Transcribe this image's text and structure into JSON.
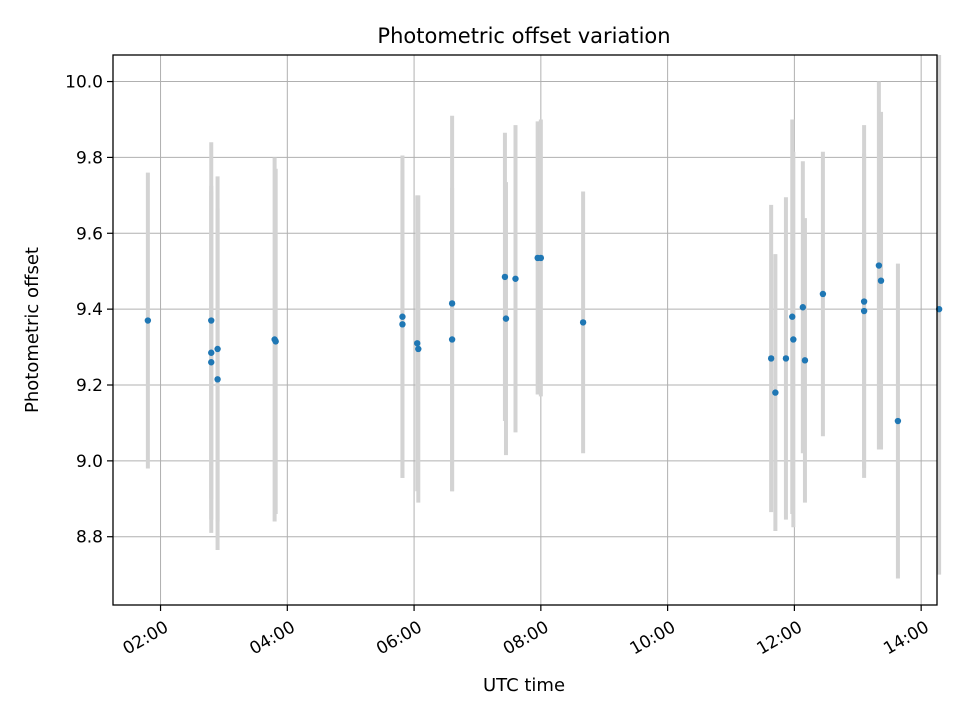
{
  "chart_data": {
    "type": "scatter",
    "title": "Photometric offset variation",
    "xlabel": "UTC time",
    "ylabel": "Photometric offset",
    "x_is_time": true,
    "xlim": [
      "01:15",
      "14:15"
    ],
    "ylim": [
      8.62,
      10.07
    ],
    "xticks": [
      "02:00",
      "04:00",
      "06:00",
      "08:00",
      "10:00",
      "12:00",
      "14:00"
    ],
    "yticks": [
      8.8,
      9.0,
      9.2,
      9.4,
      9.6,
      9.8,
      10.0
    ],
    "grid": true,
    "point_color": "#1f77b4",
    "errorbar_color": "#d3d3d3",
    "points": [
      {
        "x": "01:48",
        "y": 9.37,
        "err": 0.39
      },
      {
        "x": "02:48",
        "y": 9.37,
        "err": 0.47
      },
      {
        "x": "02:48",
        "y": 9.285,
        "err": 0.44
      },
      {
        "x": "02:48",
        "y": 9.26,
        "err": 0.45
      },
      {
        "x": "02:54",
        "y": 9.295,
        "err": 0.455
      },
      {
        "x": "02:54",
        "y": 9.215,
        "err": 0.45
      },
      {
        "x": "03:48",
        "y": 9.32,
        "err": 0.48
      },
      {
        "x": "03:49",
        "y": 9.315,
        "err": 0.455
      },
      {
        "x": "05:49",
        "y": 9.38,
        "err": 0.425
      },
      {
        "x": "05:49",
        "y": 9.36,
        "err": 0.405
      },
      {
        "x": "06:03",
        "y": 9.31,
        "err": 0.39
      },
      {
        "x": "06:04",
        "y": 9.295,
        "err": 0.405
      },
      {
        "x": "06:36",
        "y": 9.415,
        "err": 0.495
      },
      {
        "x": "06:36",
        "y": 9.32,
        "err": 0.4
      },
      {
        "x": "07:26",
        "y": 9.485,
        "err": 0.38
      },
      {
        "x": "07:27",
        "y": 9.375,
        "err": 0.36
      },
      {
        "x": "07:36",
        "y": 9.48,
        "err": 0.405
      },
      {
        "x": "07:57",
        "y": 9.535,
        "err": 0.36
      },
      {
        "x": "08:00",
        "y": 9.535,
        "err": 0.365
      },
      {
        "x": "08:40",
        "y": 9.365,
        "err": 0.345
      },
      {
        "x": "11:38",
        "y": 9.27,
        "err": 0.405
      },
      {
        "x": "11:42",
        "y": 9.18,
        "err": 0.365
      },
      {
        "x": "11:52",
        "y": 9.27,
        "err": 0.425
      },
      {
        "x": "11:58",
        "y": 9.38,
        "err": 0.52
      },
      {
        "x": "11:59",
        "y": 9.32,
        "err": 0.495
      },
      {
        "x": "12:08",
        "y": 9.405,
        "err": 0.385
      },
      {
        "x": "12:10",
        "y": 9.265,
        "err": 0.375
      },
      {
        "x": "12:27",
        "y": 9.44,
        "err": 0.375
      },
      {
        "x": "13:06",
        "y": 9.42,
        "err": 0.465
      },
      {
        "x": "13:06",
        "y": 9.395,
        "err": 0.415
      },
      {
        "x": "13:20",
        "y": 9.515,
        "err": 0.485
      },
      {
        "x": "13:22",
        "y": 9.475,
        "err": 0.445
      },
      {
        "x": "13:38",
        "y": 9.105,
        "err": 0.415
      },
      {
        "x": "14:17",
        "y": 9.4,
        "err": 0.7
      }
    ]
  }
}
